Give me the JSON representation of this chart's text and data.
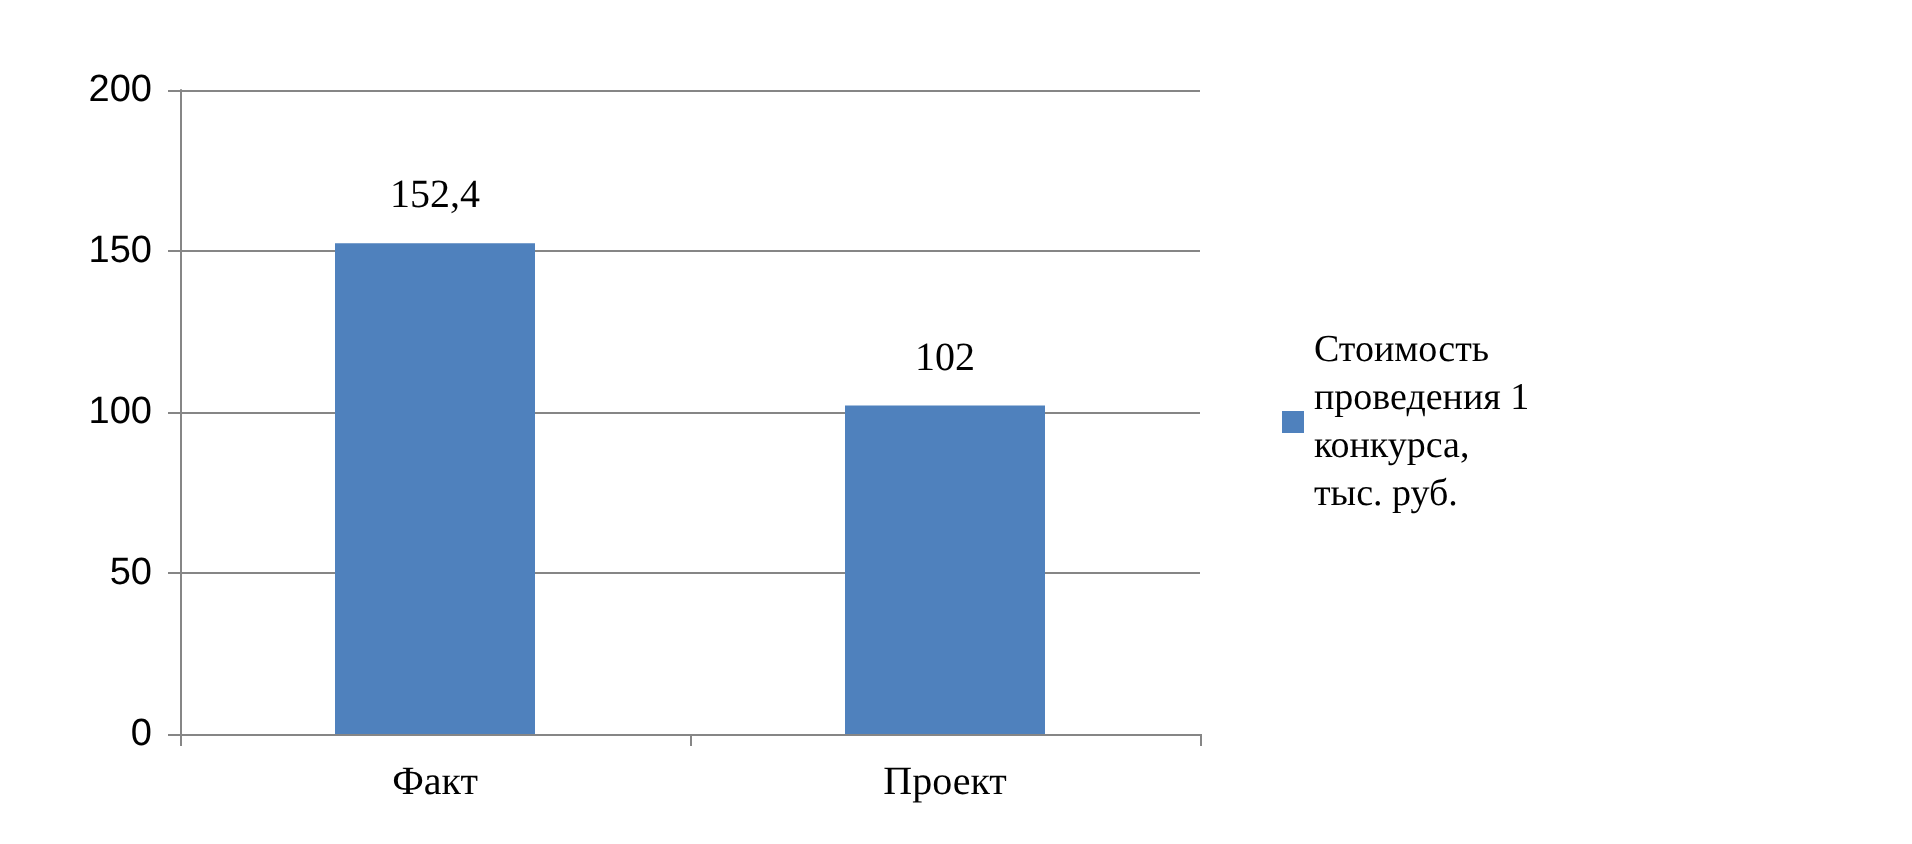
{
  "chart_data": {
    "type": "bar",
    "categories": [
      "Факт",
      "Проект"
    ],
    "series": [
      {
        "name": "Стоимость проведения 1 конкурса, тыс. руб.",
        "color": "#4f81bd",
        "values": [
          152.4,
          102
        ],
        "value_labels": [
          "152,4",
          "102"
        ]
      }
    ],
    "ylim": [
      0,
      200
    ],
    "yticks": [
      0,
      50,
      100,
      150,
      200
    ],
    "grid": "y",
    "legend": "right"
  }
}
